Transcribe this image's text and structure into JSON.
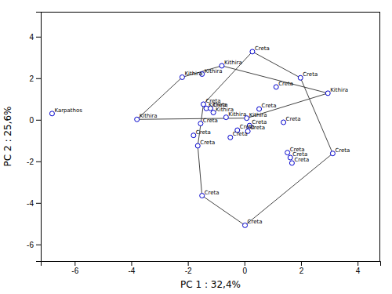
{
  "chart_data": {
    "type": "scatter",
    "xlabel": "PC 1 : 32,4%",
    "ylabel": "PC 2 : 25,6%",
    "xlim": [
      -7.2,
      4.8
    ],
    "ylim": [
      -6.8,
      5.2
    ],
    "xticks": [
      -6,
      -4,
      -2,
      0,
      2,
      4
    ],
    "yticks": [
      -6,
      -4,
      -2,
      0,
      2,
      4
    ],
    "series": [
      {
        "type": "line",
        "color": "#444444",
        "x": [
          -3.8,
          -2.2,
          -0.8,
          2.95,
          0.08,
          -3.8
        ],
        "values": [
          0.02,
          2.05,
          2.6,
          1.28,
          0.08,
          0.02
        ]
      },
      {
        "type": "line",
        "color": "#444444",
        "x": [
          -1.65,
          -1.5,
          0.02,
          3.12,
          1.98,
          0.28,
          -1.45,
          -1.65
        ],
        "values": [
          -1.25,
          -3.65,
          -5.08,
          -1.62,
          2.02,
          3.28,
          0.75,
          -1.25
        ]
      },
      {
        "type": "scatter",
        "color": "#0000cc",
        "x": [
          -6.8,
          -3.8,
          -2.2,
          -1.5,
          -0.8,
          -1.35,
          -1.1,
          -0.65,
          0.08,
          2.95,
          -1.45,
          -1.2,
          -1.55,
          -1.8,
          -1.65,
          -1.5,
          -0.5,
          -0.25,
          0.12,
          0.18,
          0.52,
          1.12,
          1.38,
          1.52,
          1.62,
          1.68,
          3.12,
          0.28,
          1.98,
          0.02
        ],
        "values": [
          0.3,
          0.02,
          2.05,
          2.2,
          2.6,
          0.55,
          0.35,
          0.12,
          0.08,
          1.28,
          0.75,
          0.55,
          -0.18,
          -0.75,
          -1.25,
          -3.65,
          -0.85,
          -0.5,
          -0.55,
          -0.28,
          0.52,
          1.58,
          -0.12,
          -1.58,
          -1.82,
          -2.08,
          -1.62,
          3.28,
          2.02,
          -5.08
        ],
        "labels": [
          "Karpathos",
          "Kithira",
          "Kithira",
          "Kithira",
          "Kithira",
          "Kithira",
          "Kithira",
          "Kithira",
          "Kithira",
          "Kithira",
          "Creta",
          "Creta",
          "Creta",
          "Creta",
          "Creta",
          "Creta",
          "Creta",
          "Creta",
          "Creta",
          "Creta",
          "Creta",
          "Creta",
          "Creta",
          "Creta",
          "Creta",
          "Creta",
          "Creta",
          "Creta",
          "Creta",
          "Creta"
        ]
      }
    ]
  }
}
